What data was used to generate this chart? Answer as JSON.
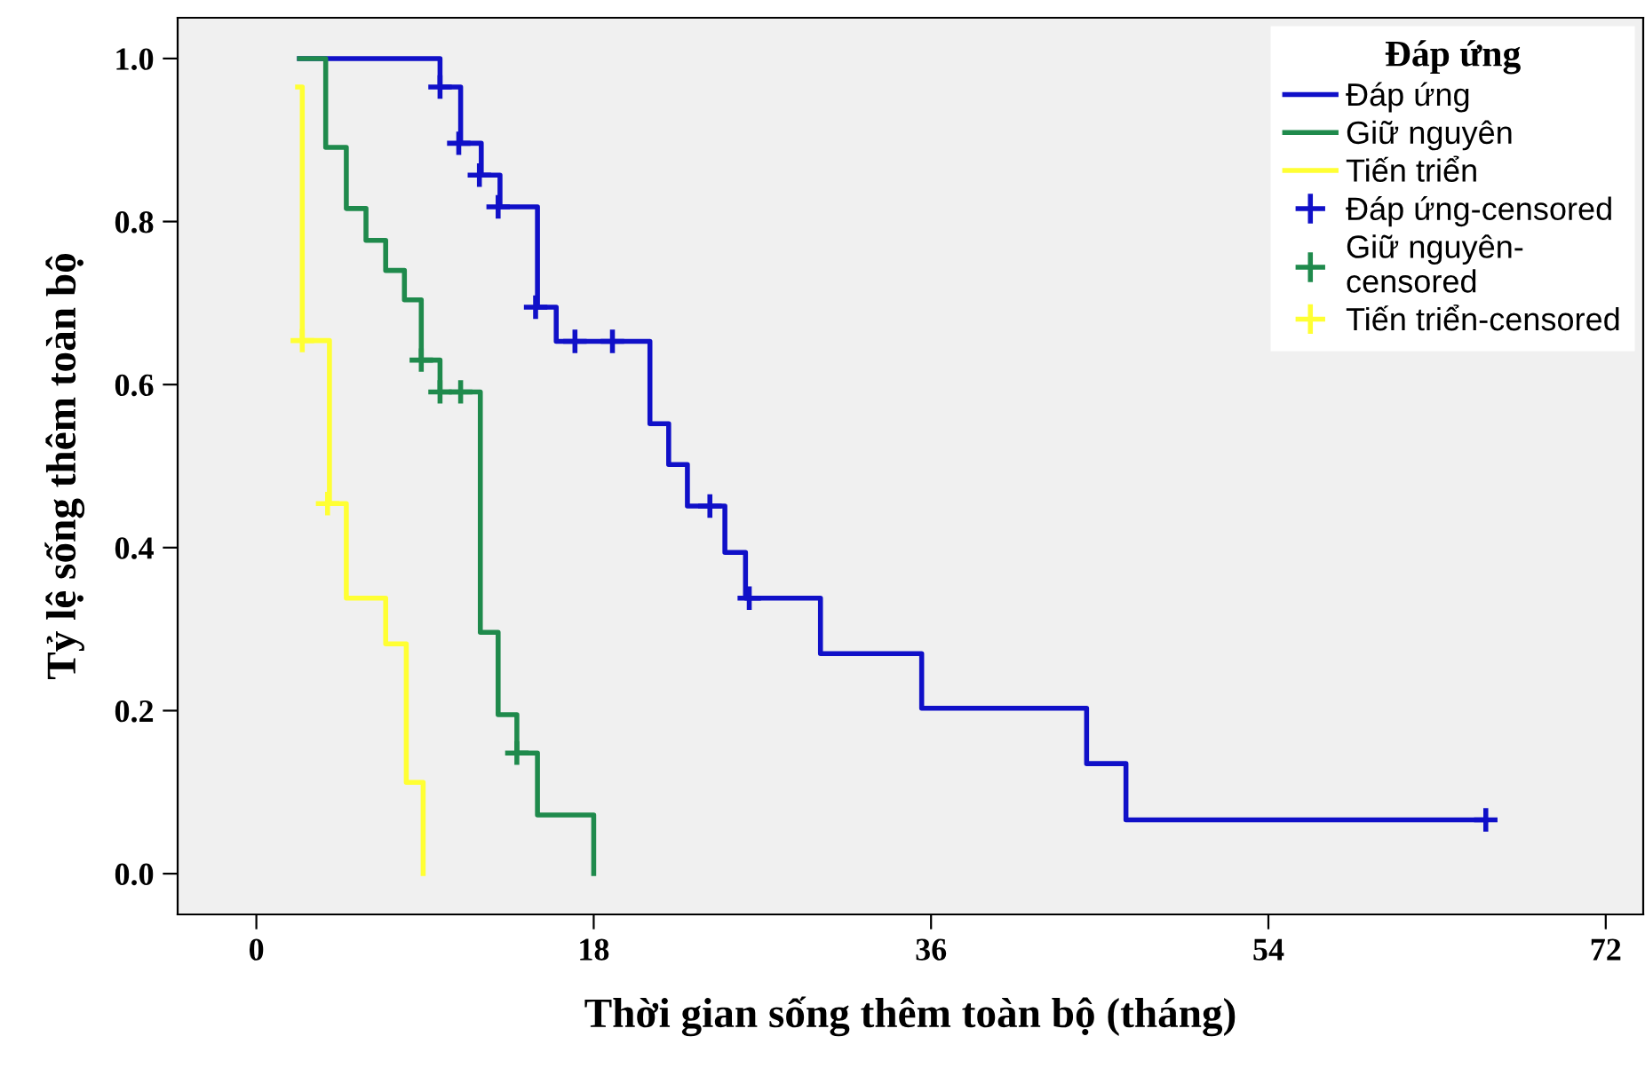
{
  "chart_data": {
    "type": "step",
    "xlabel": "Thời gian sống thêm toàn bộ (tháng)",
    "ylabel": "Tỷ lệ sống thêm toàn bộ",
    "legend_title": "Đáp ứng",
    "legend": "top right",
    "grid": false,
    "xlim": [
      -4.2,
      74
    ],
    "xticks": [
      0,
      18,
      36,
      54,
      72
    ],
    "ylim": [
      -0.05,
      1.05
    ],
    "yticks": [
      {
        "value": 0,
        "label": "0.0"
      },
      {
        "value": 0.2,
        "label": "0.2"
      },
      {
        "value": 0.4,
        "label": "0.4"
      },
      {
        "value": 0.6,
        "label": "0.6"
      },
      {
        "value": 0.8,
        "label": "0.8"
      },
      {
        "value": 1,
        "label": "1.0"
      }
    ],
    "series": [
      {
        "name": "Đáp ứng",
        "color": "#1010c8",
        "x": [
          2.3,
          9.8,
          10.9,
          12.0,
          13.0,
          15.0,
          16.0,
          21.0,
          22.0,
          23.0,
          25.0,
          26.1,
          30.1,
          35.5,
          44.3,
          46.4,
          65.6
        ],
        "values": [
          1.0,
          0.965,
          0.896,
          0.857,
          0.818,
          0.695,
          0.653,
          0.552,
          0.502,
          0.451,
          0.394,
          0.338,
          0.27,
          0.203,
          0.135,
          0.066,
          0.066
        ]
      },
      {
        "name": "Giữ nguyên",
        "color": "#1f8a4c",
        "x": [
          2.3,
          3.7,
          4.8,
          5.85,
          6.9,
          7.9,
          8.8,
          9.8,
          11.95,
          12.9,
          13.9,
          15.0,
          18.0
        ],
        "values": [
          1.0,
          0.891,
          0.816,
          0.777,
          0.74,
          0.704,
          0.63,
          0.591,
          0.296,
          0.195,
          0.148,
          0.072,
          0.0
        ]
      },
      {
        "name": "Tiến triển",
        "color": "#ffff33",
        "x": [
          2.2,
          2.45,
          3.9,
          4.8,
          6.9,
          8.0,
          8.9
        ],
        "values": [
          0.965,
          0.654,
          0.454,
          0.338,
          0.282,
          0.112,
          0.0
        ]
      },
      {
        "name": "Đáp ứng-censored",
        "type": "scatter",
        "marker": "cross",
        "color": "#1010c8",
        "x": [
          9.8,
          10.8,
          11.9,
          12.9,
          14.9,
          17.0,
          19.0,
          24.2,
          26.3,
          65.6
        ],
        "values": [
          0.965,
          0.896,
          0.857,
          0.818,
          0.695,
          0.653,
          0.653,
          0.451,
          0.338,
          0.066
        ]
      },
      {
        "name": "Giữ nguyên-\ncensored",
        "type": "scatter",
        "marker": "cross",
        "color": "#1f8a4c",
        "x": [
          8.8,
          9.8,
          10.9,
          13.9
        ],
        "values": [
          0.63,
          0.591,
          0.591,
          0.148
        ]
      },
      {
        "name": "Tiến triển-censored",
        "type": "scatter",
        "marker": "cross",
        "color": "#ffff33",
        "x": [
          2.45,
          3.8
        ],
        "values": [
          0.654,
          0.454
        ]
      }
    ]
  }
}
